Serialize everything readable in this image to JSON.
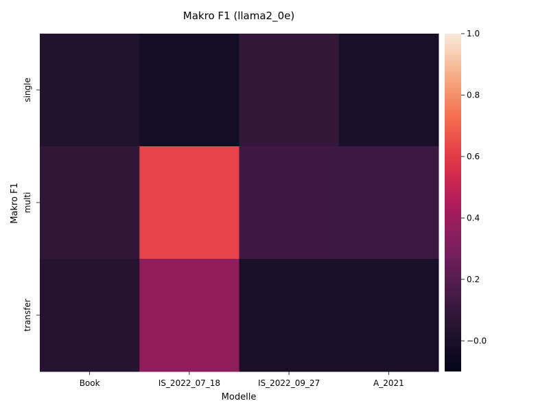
{
  "chart_data": {
    "type": "heatmap",
    "title": "Makro F1 (llama2_0e)",
    "xlabel": "Modelle",
    "ylabel": "Makro F1",
    "x_categories": [
      "Book",
      "IS_2022_07_18",
      "IS_2022_09_27",
      "A_2021"
    ],
    "y_categories": [
      "single",
      "multi",
      "transfer"
    ],
    "values": [
      [
        0.03,
        -0.02,
        0.1,
        0.0
      ],
      [
        0.09,
        0.62,
        0.13,
        0.12
      ],
      [
        0.05,
        0.36,
        0.0,
        0.0
      ]
    ],
    "colorbar": {
      "vmin": -0.1,
      "vmax": 1.0,
      "ticks": [
        -0.0,
        0.2,
        0.4,
        0.6,
        0.8,
        1.0
      ],
      "tick_labels": [
        "−0.0",
        "0.2",
        "0.4",
        "0.6",
        "0.8",
        "1.0"
      ]
    },
    "colormap": "rocket"
  }
}
